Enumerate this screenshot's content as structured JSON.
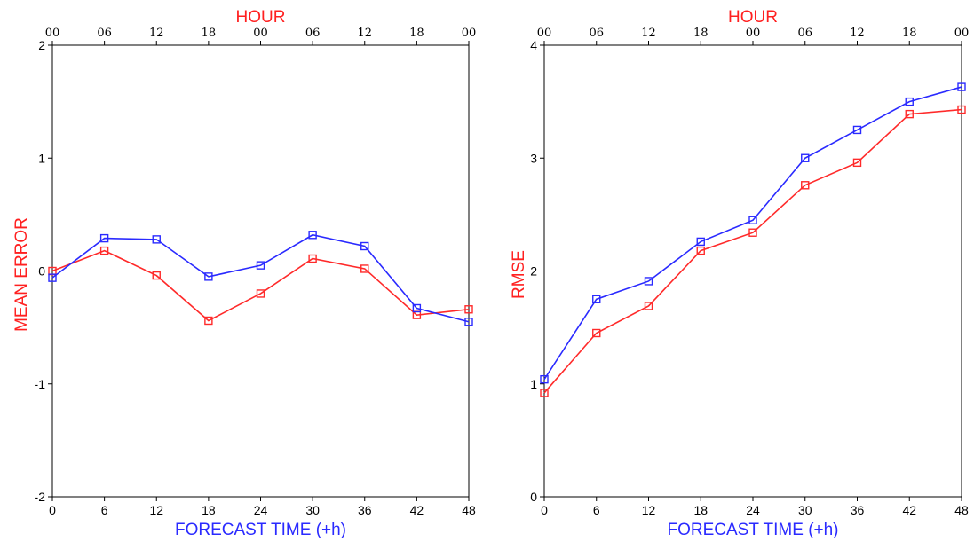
{
  "colors": {
    "series_red": "#ff2a2a",
    "series_blue": "#2a2aff",
    "label_red": "#ff2020",
    "label_blue": "#2a2aff",
    "axis": "#000000"
  },
  "chart_data": [
    {
      "type": "line",
      "ylabel": "MEAN ERROR",
      "xlabel": "FORECAST TIME (+h)",
      "top_label": "HOUR",
      "x": [
        0,
        6,
        12,
        18,
        24,
        30,
        36,
        42,
        48
      ],
      "x_tick_labels": [
        "0",
        "6",
        "12",
        "18",
        "24",
        "30",
        "36",
        "42",
        "48"
      ],
      "top_tick_labels": [
        "00",
        "06",
        "12",
        "18",
        "00",
        "06",
        "12",
        "18",
        "00"
      ],
      "xlim": [
        0,
        48
      ],
      "ylim": [
        -2,
        2
      ],
      "y_ticks": [
        -2,
        -1,
        0,
        1,
        2
      ],
      "y_tick_labels": [
        "-2",
        "-1",
        "0",
        "1",
        "2"
      ],
      "zero_line": true,
      "series": [
        {
          "color": "#ff2a2a",
          "values": [
            0.0,
            0.18,
            -0.04,
            -0.44,
            -0.2,
            0.11,
            0.02,
            -0.39,
            -0.34
          ]
        },
        {
          "color": "#2a2aff",
          "values": [
            -0.06,
            0.29,
            0.28,
            -0.05,
            0.05,
            0.32,
            0.22,
            -0.33,
            -0.45
          ]
        }
      ]
    },
    {
      "type": "line",
      "ylabel": "RMSE",
      "xlabel": "FORECAST TIME (+h)",
      "top_label": "HOUR",
      "x": [
        0,
        6,
        12,
        18,
        24,
        30,
        36,
        42,
        48
      ],
      "x_tick_labels": [
        "0",
        "6",
        "12",
        "18",
        "24",
        "30",
        "36",
        "42",
        "48"
      ],
      "top_tick_labels": [
        "00",
        "06",
        "12",
        "18",
        "00",
        "06",
        "12",
        "18",
        "00"
      ],
      "xlim": [
        0,
        48
      ],
      "ylim": [
        0,
        4
      ],
      "y_ticks": [
        0,
        1,
        2,
        3,
        4
      ],
      "y_tick_labels": [
        "0",
        "1",
        "2",
        "3",
        "4"
      ],
      "zero_line": false,
      "series": [
        {
          "color": "#ff2a2a",
          "values": [
            0.92,
            1.45,
            1.69,
            2.18,
            2.34,
            2.76,
            2.96,
            3.39,
            3.43
          ]
        },
        {
          "color": "#2a2aff",
          "values": [
            1.04,
            1.75,
            1.91,
            2.26,
            2.45,
            3.0,
            3.25,
            3.5,
            3.63
          ]
        }
      ]
    }
  ]
}
